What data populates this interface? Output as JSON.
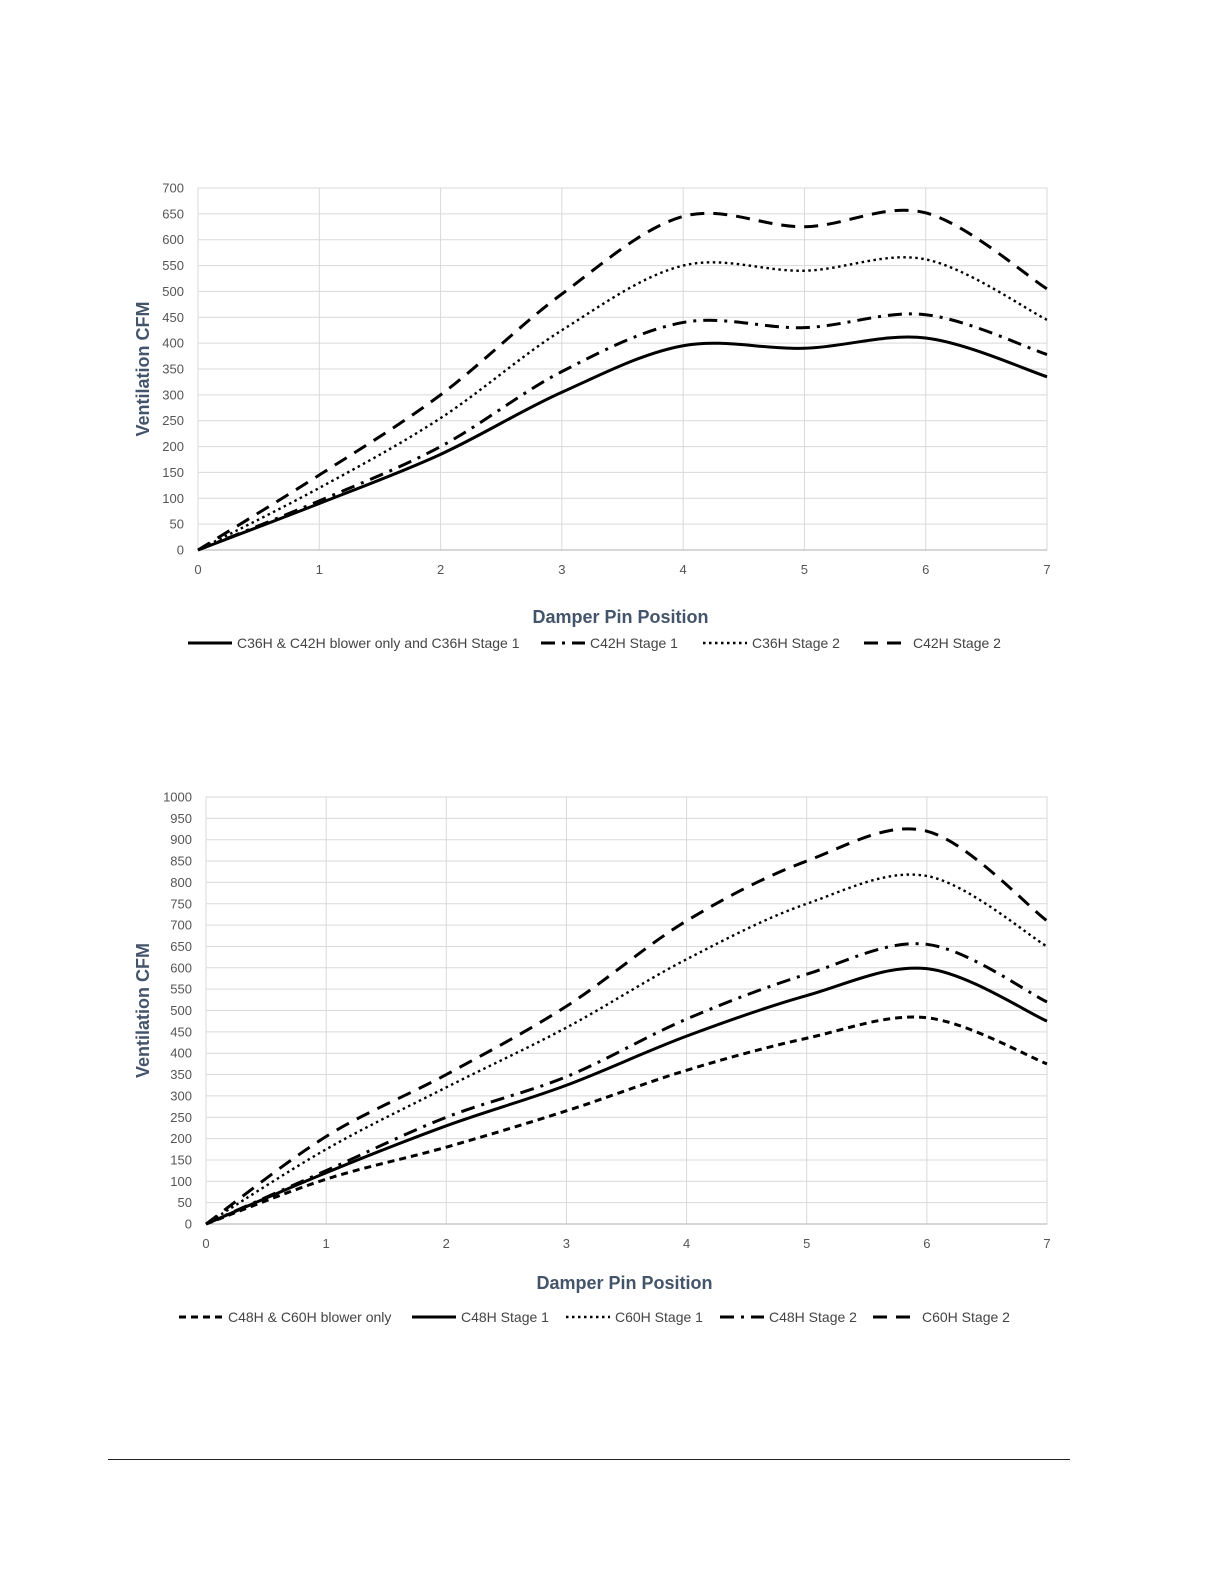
{
  "chart_data": [
    {
      "type": "line",
      "title": "",
      "xlabel": "Damper Pin Position",
      "ylabel": "Ventilation CFM",
      "xlim": [
        0,
        7
      ],
      "ylim": [
        0,
        700
      ],
      "xticks": [
        0,
        1,
        2,
        3,
        4,
        5,
        6,
        7
      ],
      "yticks": [
        0,
        50,
        100,
        150,
        200,
        250,
        300,
        350,
        400,
        450,
        500,
        550,
        600,
        650,
        700
      ],
      "grid": true,
      "legend_position": "bottom",
      "x": [
        0,
        1,
        2,
        3,
        4,
        5,
        6,
        7
      ],
      "series": [
        {
          "name": "C36H & C42H blower only and C36H Stage 1",
          "style": "solid",
          "values": [
            0,
            90,
            185,
            305,
            395,
            390,
            410,
            335
          ]
        },
        {
          "name": "C42H Stage 1",
          "style": "dash-dot",
          "values": [
            0,
            95,
            200,
            345,
            440,
            430,
            455,
            378
          ]
        },
        {
          "name": "C36H Stage 2",
          "style": "dotted",
          "values": [
            0,
            120,
            255,
            425,
            550,
            540,
            562,
            445
          ]
        },
        {
          "name": "C42H Stage 2",
          "style": "dashed",
          "values": [
            0,
            145,
            300,
            495,
            645,
            625,
            652,
            505
          ]
        }
      ]
    },
    {
      "type": "line",
      "title": "",
      "xlabel": "Damper Pin Position",
      "ylabel": "Ventilation CFM",
      "xlim": [
        0,
        7
      ],
      "ylim": [
        0,
        1000
      ],
      "xticks": [
        0,
        1,
        2,
        3,
        4,
        5,
        6,
        7
      ],
      "yticks": [
        0,
        50,
        100,
        150,
        200,
        250,
        300,
        350,
        400,
        450,
        500,
        550,
        600,
        650,
        700,
        750,
        800,
        850,
        900,
        950,
        1000
      ],
      "grid": true,
      "legend_position": "bottom",
      "x": [
        0,
        1,
        2,
        3,
        4,
        5,
        6,
        7
      ],
      "series": [
        {
          "name": "C48H & C60H blower only",
          "style": "short-dash",
          "values": [
            0,
            105,
            180,
            265,
            360,
            435,
            483,
            375
          ]
        },
        {
          "name": "C48H Stage 1",
          "style": "solid",
          "values": [
            0,
            120,
            230,
            325,
            440,
            535,
            598,
            475
          ]
        },
        {
          "name": "C60H Stage 1",
          "style": "dotted",
          "values": [
            0,
            175,
            320,
            460,
            620,
            750,
            815,
            650
          ]
        },
        {
          "name": "C48H Stage 2",
          "style": "dash-dot",
          "values": [
            0,
            125,
            250,
            345,
            480,
            585,
            655,
            520
          ]
        },
        {
          "name": "C60H Stage 2",
          "style": "dashed",
          "values": [
            0,
            205,
            350,
            510,
            710,
            850,
            920,
            710
          ]
        }
      ]
    }
  ]
}
